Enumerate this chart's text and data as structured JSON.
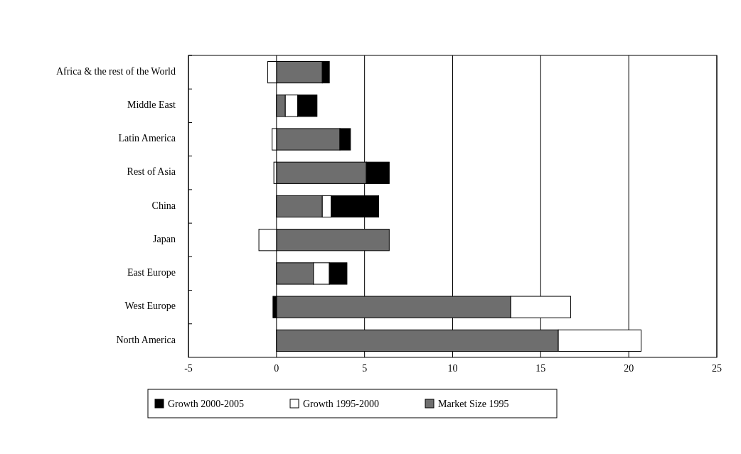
{
  "chart_data": {
    "type": "bar",
    "orientation": "horizontal",
    "stacked": true,
    "categories": [
      "Africa & the rest of the World",
      "Middle East",
      "Latin America",
      "Rest of Asia",
      "China",
      "Japan",
      "East Europe",
      "West Europe",
      "North America"
    ],
    "series": [
      {
        "name": "Market Size 1995",
        "color": "#6e6e6e",
        "values": [
          2.6,
          0.5,
          3.6,
          5.1,
          2.6,
          6.4,
          2.1,
          13.3,
          16.0
        ]
      },
      {
        "name": "Growth 1995-2000",
        "color": "#ffffff",
        "values": [
          -0.5,
          0.7,
          -0.25,
          -0.15,
          0.5,
          -1.0,
          0.9,
          3.4,
          4.7
        ]
      },
      {
        "name": "Growth 2000-2005",
        "color": "#000000",
        "values": [
          0.4,
          1.1,
          0.6,
          1.3,
          2.7,
          null,
          1.0,
          -0.2,
          null
        ]
      }
    ],
    "xlim": [
      -5,
      25
    ],
    "xticks": [
      -5,
      0,
      5,
      10,
      15,
      20,
      25
    ],
    "grid": "x",
    "legend": "bottom"
  }
}
